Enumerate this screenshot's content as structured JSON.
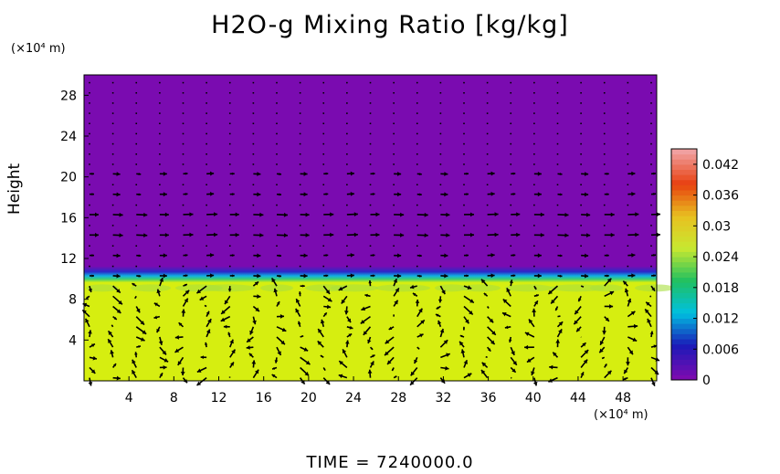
{
  "chart_data": {
    "type": "heatmap",
    "title": "H2O-g Mixing Ratio [kg/kg]",
    "ylabel": "Height",
    "y_unit_label": "(×10⁴ m)",
    "x_unit_label": "(×10⁴ m)",
    "x_ticks": [
      "4",
      "8",
      "12",
      "16",
      "20",
      "24",
      "28",
      "32",
      "36",
      "40",
      "44",
      "48"
    ],
    "y_ticks": [
      "4",
      "8",
      "12",
      "16",
      "20",
      "24",
      "28"
    ],
    "xlim": [
      0,
      51
    ],
    "ylim": [
      0,
      30
    ],
    "colorbar": {
      "range": [
        0,
        0.045
      ],
      "ticks": [
        "0",
        "0.006",
        "0.012",
        "0.018",
        "0.024",
        "0.03",
        "0.036",
        "0.042"
      ],
      "colors": [
        "#7a0bb0",
        "#1a1ab8",
        "#00c0e0",
        "#20c060",
        "#c8e830",
        "#e8c020",
        "#e84010",
        "#f0a0a0"
      ]
    },
    "field": {
      "lower_layer_top_height": 10,
      "lower_layer_value": 0.028,
      "upper_layer_value": 0.0,
      "lower_color": "#d6ee10",
      "upper_color": "#7a0bb0"
    },
    "overlay": "wind vectors",
    "footer": "TIME = 7240000.0"
  }
}
